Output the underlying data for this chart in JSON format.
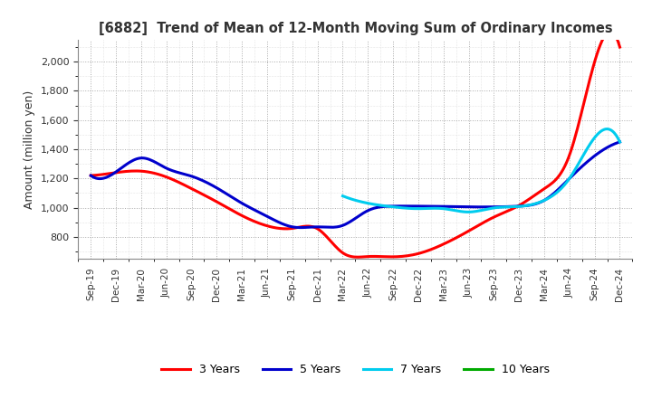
{
  "title": "[6882]  Trend of Mean of 12-Month Moving Sum of Ordinary Incomes",
  "ylabel": "Amount (million yen)",
  "background_color": "#ffffff",
  "grid_color": "#aaaaaa",
  "x_labels": [
    "Sep-19",
    "Dec-19",
    "Mar-20",
    "Jun-20",
    "Sep-20",
    "Dec-20",
    "Mar-21",
    "Jun-21",
    "Sep-21",
    "Dec-21",
    "Mar-22",
    "Jun-22",
    "Sep-22",
    "Dec-22",
    "Mar-23",
    "Jun-23",
    "Sep-23",
    "Dec-23",
    "Mar-24",
    "Jun-24",
    "Sep-24",
    "Dec-24"
  ],
  "ylim": [
    650,
    2150
  ],
  "yticks": [
    800,
    1000,
    1200,
    1400,
    1600,
    1800,
    2000
  ],
  "title_color": "#333333",
  "series": {
    "3 Years": {
      "color": "#ff0000",
      "x_indices": [
        0,
        1,
        2,
        3,
        4,
        5,
        6,
        7,
        8,
        9,
        10,
        11,
        12,
        13,
        14,
        15,
        16,
        17,
        18,
        19,
        20,
        21
      ],
      "values": [
        1220,
        1240,
        1250,
        1210,
        1130,
        1040,
        945,
        875,
        858,
        855,
        690,
        665,
        663,
        685,
        750,
        840,
        935,
        1015,
        1130,
        1360,
        2000,
        2100
      ]
    },
    "5 Years": {
      "color": "#0000cc",
      "x_indices": [
        0,
        1,
        2,
        3,
        4,
        5,
        6,
        7,
        8,
        9,
        10,
        11,
        12,
        13,
        14,
        15,
        16,
        17,
        18,
        19,
        20,
        21
      ],
      "values": [
        1220,
        1245,
        1340,
        1270,
        1215,
        1135,
        1030,
        940,
        868,
        868,
        878,
        980,
        1010,
        1010,
        1008,
        1005,
        1005,
        1010,
        1050,
        1200,
        1355,
        1450
      ]
    },
    "7 Years": {
      "color": "#00ccee",
      "x_indices": [
        10,
        11,
        12,
        13,
        14,
        15,
        16,
        17,
        18,
        19,
        20,
        21
      ],
      "values": [
        1080,
        1030,
        1005,
        993,
        993,
        970,
        998,
        1008,
        1050,
        1200,
        1480,
        1450
      ]
    },
    "10 Years": {
      "color": "#00aa00",
      "x_indices": [],
      "values": []
    }
  }
}
